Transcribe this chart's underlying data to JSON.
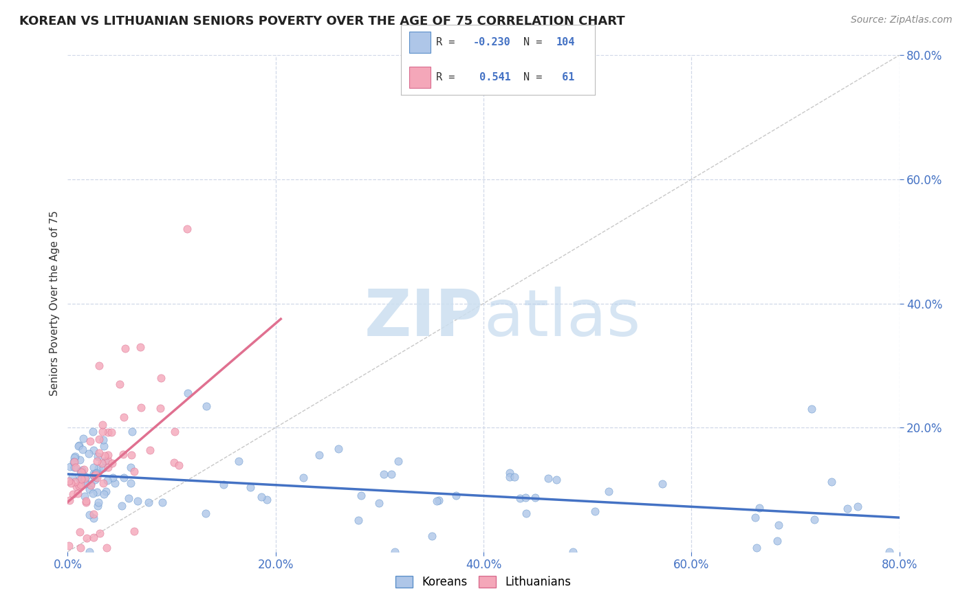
{
  "title": "KOREAN VS LITHUANIAN SENIORS POVERTY OVER THE AGE OF 75 CORRELATION CHART",
  "source": "Source: ZipAtlas.com",
  "ylabel": "Seniors Poverty Over the Age of 75",
  "watermark_zip": "ZIP",
  "watermark_atlas": "atlas",
  "koreans_R": -0.23,
  "koreans_N": 104,
  "lithuanians_R": 0.541,
  "lithuanians_N": 61,
  "xlim": [
    0.0,
    0.8
  ],
  "ylim": [
    0.0,
    0.8
  ],
  "korean_color": "#aec6e8",
  "lithuanian_color": "#f4a7b9",
  "korean_edge_color": "#5b8fc9",
  "lithuanian_edge_color": "#d96b8e",
  "korean_line_color": "#4472c4",
  "lithuanian_line_color": "#e07090",
  "diagonal_color": "#c8c8c8",
  "background_color": "#ffffff",
  "grid_color": "#d0d8e8",
  "tick_color": "#4472c4",
  "title_color": "#222222",
  "legend_color": "#4472c4",
  "source_color": "#888888",
  "grid_ticks": [
    0.2,
    0.4,
    0.6,
    0.8
  ],
  "korean_trend_x": [
    0.0,
    0.8
  ],
  "korean_trend_y": [
    0.125,
    0.055
  ],
  "lith_trend_x": [
    0.0,
    0.205
  ],
  "lith_trend_y": [
    0.08,
    0.375
  ]
}
